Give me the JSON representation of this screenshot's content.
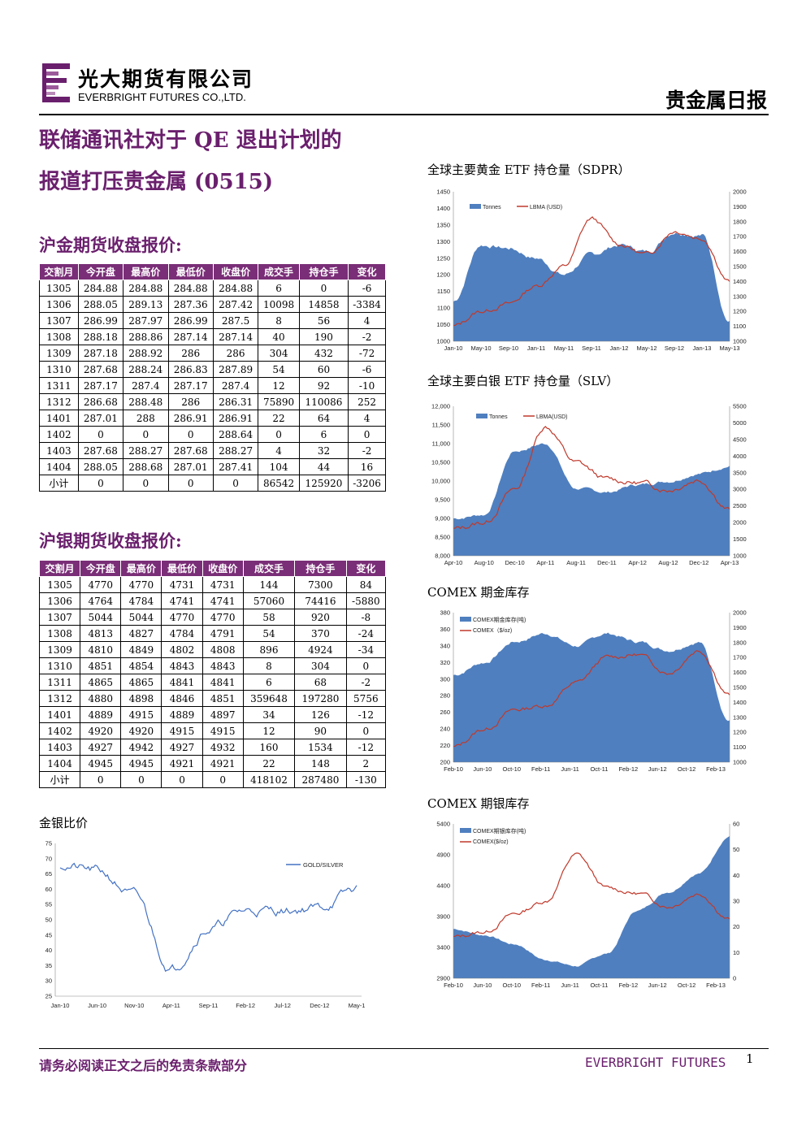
{
  "header": {
    "company_cn": "光大期货有限公司",
    "company_en": "EVERBRIGHT FUTURES CO.,LTD.",
    "report_type": "贵金属日报"
  },
  "title": {
    "line1": "联储通讯社对于 QE 退出计划的",
    "line2": "报道打压贵金属 (0515)"
  },
  "gold_futures": {
    "title": "沪金期货收盘报价:",
    "columns": [
      "交割月",
      "今开盘",
      "最高价",
      "最低价",
      "收盘价",
      "成交手",
      "持仓手",
      "变化"
    ],
    "rows": [
      [
        "1305",
        "284.88",
        "284.88",
        "284.88",
        "284.88",
        "6",
        "0",
        "-6"
      ],
      [
        "1306",
        "288.05",
        "289.13",
        "287.36",
        "287.42",
        "10098",
        "14858",
        "-3384"
      ],
      [
        "1307",
        "286.99",
        "287.97",
        "286.99",
        "287.5",
        "8",
        "56",
        "4"
      ],
      [
        "1308",
        "288.18",
        "288.86",
        "287.14",
        "287.14",
        "40",
        "190",
        "-2"
      ],
      [
        "1309",
        "287.18",
        "288.92",
        "286",
        "286",
        "304",
        "432",
        "-72"
      ],
      [
        "1310",
        "287.68",
        "288.24",
        "286.83",
        "287.89",
        "54",
        "60",
        "-6"
      ],
      [
        "1311",
        "287.17",
        "287.4",
        "287.17",
        "287.4",
        "12",
        "92",
        "-10"
      ],
      [
        "1312",
        "286.68",
        "288.48",
        "286",
        "286.31",
        "75890",
        "110086",
        "252"
      ],
      [
        "1401",
        "287.01",
        "288",
        "286.91",
        "286.91",
        "22",
        "64",
        "4"
      ],
      [
        "1402",
        "0",
        "0",
        "0",
        "288.64",
        "0",
        "6",
        "0"
      ],
      [
        "1403",
        "287.68",
        "288.27",
        "287.68",
        "288.27",
        "4",
        "32",
        "-2"
      ],
      [
        "1404",
        "288.05",
        "288.68",
        "287.01",
        "287.41",
        "104",
        "44",
        "16"
      ],
      [
        "小计",
        "0",
        "0",
        "0",
        "0",
        "86542",
        "125920",
        "-3206"
      ]
    ]
  },
  "silver_futures": {
    "title": "沪银期货收盘报价:",
    "columns": [
      "交割月",
      "今开盘",
      "最高价",
      "最低价",
      "收盘价",
      "成交手",
      "持仓手",
      "变化"
    ],
    "rows": [
      [
        "1305",
        "4770",
        "4770",
        "4731",
        "4731",
        "144",
        "7300",
        "84"
      ],
      [
        "1306",
        "4764",
        "4784",
        "4741",
        "4741",
        "57060",
        "74416",
        "-5880"
      ],
      [
        "1307",
        "5044",
        "5044",
        "4770",
        "4770",
        "58",
        "920",
        "-8"
      ],
      [
        "1308",
        "4813",
        "4827",
        "4784",
        "4791",
        "54",
        "370",
        "-24"
      ],
      [
        "1309",
        "4810",
        "4849",
        "4802",
        "4808",
        "896",
        "4924",
        "-34"
      ],
      [
        "1310",
        "4851",
        "4854",
        "4843",
        "4843",
        "8",
        "304",
        "0"
      ],
      [
        "1311",
        "4865",
        "4865",
        "4841",
        "4841",
        "6",
        "68",
        "-2"
      ],
      [
        "1312",
        "4880",
        "4898",
        "4846",
        "4851",
        "359648",
        "197280",
        "5756"
      ],
      [
        "1401",
        "4889",
        "4915",
        "4889",
        "4897",
        "34",
        "126",
        "-12"
      ],
      [
        "1402",
        "4920",
        "4920",
        "4915",
        "4915",
        "12",
        "90",
        "0"
      ],
      [
        "1403",
        "4927",
        "4942",
        "4927",
        "4932",
        "160",
        "1534",
        "-12"
      ],
      [
        "1404",
        "4945",
        "4945",
        "4921",
        "4921",
        "22",
        "148",
        "2"
      ],
      [
        "小计",
        "0",
        "0",
        "0",
        "0",
        "418102",
        "287480",
        "-130"
      ]
    ]
  },
  "charts": {
    "ratio_caption": "金银比价",
    "gld_caption": "全球主要黄金 ETF 持仓量（SDPR）",
    "slv_caption": "全球主要白银 ETF 持仓量（SLV）",
    "comex_gold_caption": "COMEX 期金库存",
    "comex_silver_caption": "COMEX 期银库存"
  },
  "colors": {
    "accent": "#6a1f6d",
    "table_header": "#7a2e77",
    "area": "#4f7fbf",
    "line": "#c0392b",
    "ratio_line": "#4472c4"
  },
  "footer": {
    "disclaimer": "请务必阅读正文之后的免责条款部分",
    "brand": "EVERBRIGHT FUTURES",
    "page": "1"
  },
  "chart_data": [
    {
      "type": "line",
      "x": [
        "Jan-10",
        "Jun-10",
        "Nov-10",
        "Apr-11",
        "Sep-11",
        "Feb-12",
        "Jul-12",
        "Dec-12",
        "May-1"
      ],
      "series": [
        {
          "name": "GOLD/SILVER",
          "values": [
            68,
            66,
            58,
            34,
            47,
            53,
            53,
            54,
            60
          ]
        }
      ],
      "ylim": [
        25,
        75
      ],
      "yticks": [
        25,
        30,
        35,
        40,
        45,
        50,
        55,
        60,
        65,
        70,
        75
      ]
    },
    {
      "type": "area",
      "x": [
        "Jan-10",
        "May-10",
        "Sep-10",
        "Jan-11",
        "May-11",
        "Sep-11",
        "Jan-12",
        "May-12",
        "Sep-12",
        "Jan-13",
        "May-13"
      ],
      "series": [
        {
          "name": "Tonnes",
          "axis": "left",
          "values": [
            1120,
            1290,
            1280,
            1250,
            1200,
            1260,
            1290,
            1270,
            1330,
            1320,
            1060
          ]
        },
        {
          "name": "LBMA (USD)",
          "axis": "right",
          "values": [
            1100,
            1200,
            1250,
            1370,
            1500,
            1820,
            1650,
            1580,
            1740,
            1690,
            1400
          ]
        }
      ],
      "ylim_left": [
        1000,
        1450
      ],
      "ylim_right": [
        1000,
        2000
      ],
      "yticks_left": [
        1000,
        1050,
        1100,
        1150,
        1200,
        1250,
        1300,
        1350,
        1400,
        1450
      ],
      "yticks_right": [
        1000,
        1100,
        1200,
        1300,
        1400,
        1500,
        1600,
        1700,
        1800,
        1900,
        2000
      ]
    },
    {
      "type": "area",
      "x": [
        "Apr-10",
        "Aug-10",
        "Dec-10",
        "Apr-11",
        "Aug-11",
        "Dec-11",
        "Apr-12",
        "Aug-12",
        "Dec-12",
        "Apr-13"
      ],
      "series": [
        {
          "name": "Tonnes",
          "axis": "left",
          "values": [
            9000,
            9100,
            10800,
            11000,
            9800,
            9700,
            9900,
            10000,
            10200,
            10400
          ]
        },
        {
          "name": "LBMA(USD)",
          "axis": "right",
          "values": [
            1800,
            2000,
            3000,
            4900,
            3800,
            3300,
            3200,
            3000,
            3300,
            2400
          ]
        }
      ],
      "ylim_left": [
        8000,
        12000
      ],
      "ylim_right": [
        1000,
        5500
      ],
      "yticks_left": [
        "8,000",
        "8,500",
        "9,000",
        "9,500",
        "10,000",
        "10,500",
        "11,000",
        "11,500",
        "12,000"
      ],
      "yticks_right": [
        1000,
        1500,
        2000,
        2500,
        3000,
        3500,
        4000,
        4500,
        5000,
        5500
      ]
    },
    {
      "type": "area",
      "x": [
        "Feb-10",
        "Jun-10",
        "Oct-10",
        "Feb-11",
        "Jun-11",
        "Oct-11",
        "Feb-12",
        "Jun-12",
        "Oct-12",
        "Feb-13"
      ],
      "series": [
        {
          "name": "COMEX期金库存(吨)",
          "axis": "left",
          "values": [
            305,
            320,
            345,
            355,
            340,
            355,
            345,
            335,
            345,
            250
          ]
        },
        {
          "name": "COMEX（$/oz)",
          "axis": "right",
          "values": [
            1100,
            1220,
            1350,
            1380,
            1530,
            1700,
            1720,
            1600,
            1750,
            1450
          ]
        }
      ],
      "ylim_left": [
        200,
        380
      ],
      "ylim_right": [
        1000,
        2000
      ],
      "yticks_left": [
        200,
        220,
        240,
        260,
        280,
        300,
        320,
        340,
        360,
        380
      ],
      "yticks_right": [
        1000,
        1100,
        1200,
        1300,
        1400,
        1500,
        1600,
        1700,
        1800,
        1900,
        2000
      ]
    },
    {
      "type": "area",
      "x": [
        "Feb-10",
        "Jun-10",
        "Oct-10",
        "Feb-11",
        "Jun-11",
        "Oct-11",
        "Feb-12",
        "Jun-12",
        "Oct-12",
        "Feb-13"
      ],
      "series": [
        {
          "name": "COMEX期银库存(吨)",
          "axis": "left",
          "values": [
            3700,
            3600,
            3450,
            3200,
            3100,
            3300,
            4000,
            4300,
            4600,
            5200
          ]
        },
        {
          "name": "COMEX($/oz)",
          "axis": "right",
          "values": [
            16,
            18,
            25,
            30,
            48,
            35,
            33,
            28,
            33,
            23
          ]
        }
      ],
      "ylim_left": [
        2900,
        5400
      ],
      "ylim_right": [
        0,
        60
      ],
      "yticks_left": [
        2900,
        3400,
        3900,
        4400,
        4900,
        5400
      ],
      "yticks_right": [
        0,
        10,
        20,
        30,
        40,
        50,
        60
      ]
    }
  ]
}
